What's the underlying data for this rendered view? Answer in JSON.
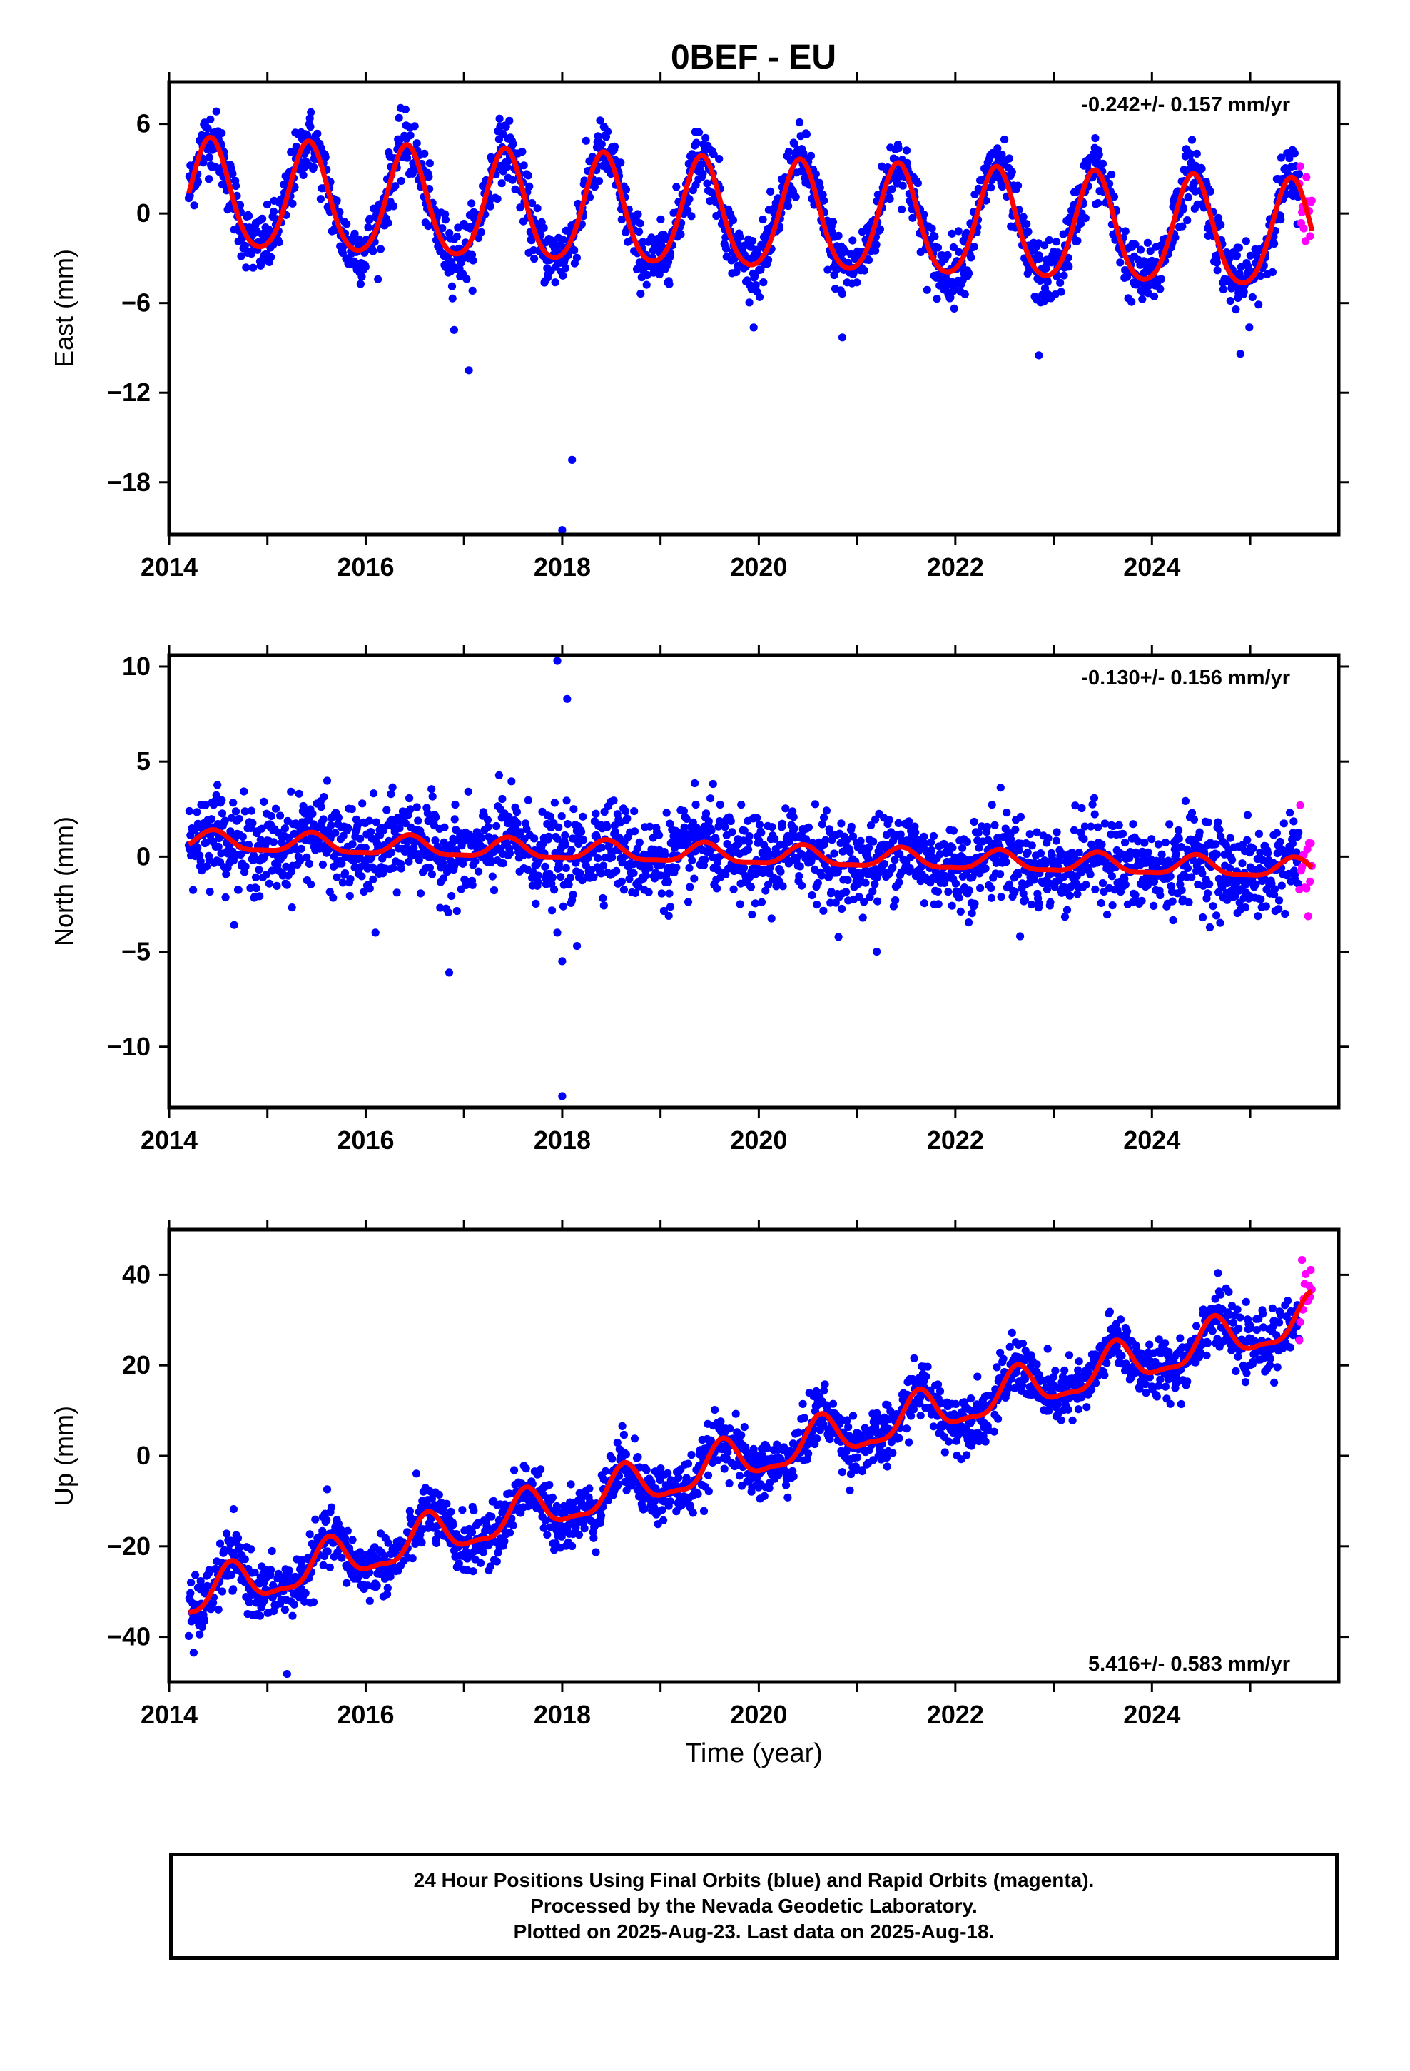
{
  "title": "0BEF - EU",
  "colors": {
    "final": "#0000ff",
    "rapid": "#ff00ff",
    "model": "#ff0000",
    "axis": "#000000"
  },
  "chart_data": [
    {
      "type": "scatter",
      "ylabel": "East (mm)",
      "xlabel": "",
      "xlim": [
        2014,
        2025.9
      ],
      "ylim": [
        -21.5,
        8.8
      ],
      "x_ticks": [
        "2014",
        "2016",
        "2018",
        "2020",
        "2022",
        "2024"
      ],
      "y_ticks": [
        6,
        0,
        -6,
        -12,
        -18
      ],
      "y_tick_labels": [
        "6",
        "0",
        "−6",
        "−12",
        "−18"
      ],
      "rate_text": "-0.242+/- 0.157 mm/yr",
      "rate_position": "top-right",
      "series": [
        {
          "name": "Final Orbits",
          "style": "points",
          "color": "#0000ff",
          "x_range": [
            2014.2,
            2025.5
          ]
        },
        {
          "name": "Rapid Orbits",
          "style": "points",
          "color": "#ff00ff",
          "x_range": [
            2025.5,
            2025.63
          ]
        },
        {
          "name": "Model",
          "style": "line",
          "color": "#ff0000",
          "offset": 1.1,
          "rate": -0.242,
          "amp1": 3.6,
          "peak_phase": 0.42,
          "amp2": 0.45
        }
      ],
      "outliers": [
        [
          2017.05,
          -10.5
        ],
        [
          2018.1,
          -16.5
        ],
        [
          2018.0,
          -21.2
        ],
        [
          2016.9,
          -7.8
        ],
        [
          2022.85,
          -9.5
        ],
        [
          2024.9,
          -9.4
        ],
        [
          2020.85,
          -8.3
        ]
      ]
    },
    {
      "type": "scatter",
      "ylabel": "North (mm)",
      "xlabel": "",
      "xlim": [
        2014,
        2025.9
      ],
      "ylim": [
        -13.2,
        10.6
      ],
      "x_ticks": [
        "2014",
        "2016",
        "2018",
        "2020",
        "2022",
        "2024"
      ],
      "y_ticks": [
        10,
        5,
        0,
        -5,
        -10
      ],
      "y_tick_labels": [
        "10",
        "5",
        "0",
        "−5",
        "−10"
      ],
      "rate_text": "-0.130+/- 0.156 mm/yr",
      "rate_position": "top-right",
      "series": [
        {
          "name": "Final Orbits",
          "style": "points",
          "color": "#0000ff",
          "x_range": [
            2014.2,
            2025.5
          ]
        },
        {
          "name": "Rapid Orbits",
          "style": "points",
          "color": "#ff00ff",
          "x_range": [
            2025.5,
            2025.63
          ]
        },
        {
          "name": "Model",
          "style": "line",
          "color": "#ff0000",
          "offset": 0.8,
          "rate": -0.13,
          "amp1": 0.5,
          "peak_phase": 0.45,
          "amp2": 0.15
        }
      ],
      "outliers": [
        [
          2017.95,
          10.3
        ],
        [
          2018.05,
          8.3
        ],
        [
          2018.0,
          -12.6
        ],
        [
          2016.85,
          -6.1
        ],
        [
          2018.0,
          -5.5
        ],
        [
          2017.95,
          -4.0
        ],
        [
          2018.15,
          -4.7
        ],
        [
          2021.2,
          -5.0
        ],
        [
          2016.1,
          -4.0
        ]
      ]
    },
    {
      "type": "scatter",
      "ylabel": "Up (mm)",
      "xlabel": "Time (year)",
      "xlim": [
        2014,
        2025.9
      ],
      "ylim": [
        -50,
        50
      ],
      "x_ticks": [
        "2014",
        "2016",
        "2018",
        "2020",
        "2022",
        "2024"
      ],
      "y_ticks": [
        40,
        20,
        0,
        -20,
        -40
      ],
      "y_tick_labels": [
        "40",
        "20",
        "0",
        "−20",
        "−40"
      ],
      "rate_text": "5.416+/- 0.583 mm/yr",
      "rate_position": "bottom-right",
      "series": [
        {
          "name": "Final Orbits",
          "style": "points",
          "color": "#0000ff",
          "x_range": [
            2014.2,
            2025.5
          ]
        },
        {
          "name": "Rapid Orbits",
          "style": "points",
          "color": "#ff00ff",
          "x_range": [
            2025.5,
            2025.63
          ]
        },
        {
          "name": "Model",
          "style": "line",
          "color": "#ff0000",
          "offset": -31.5,
          "rate": 5.416,
          "amp1": 4.5,
          "peak_phase": 0.63,
          "amp2": 1.5
        }
      ],
      "outliers": [
        [
          2015.2,
          -48.2
        ],
        [
          2014.25,
          -43.5
        ]
      ]
    }
  ],
  "footer": {
    "line1": "24 Hour Positions Using Final Orbits (blue) and Rapid Orbits (magenta).",
    "line2": "Processed by the Nevada Geodetic Laboratory.",
    "line3": "Plotted on 2025-Aug-23. Last data on 2025-Aug-18."
  }
}
